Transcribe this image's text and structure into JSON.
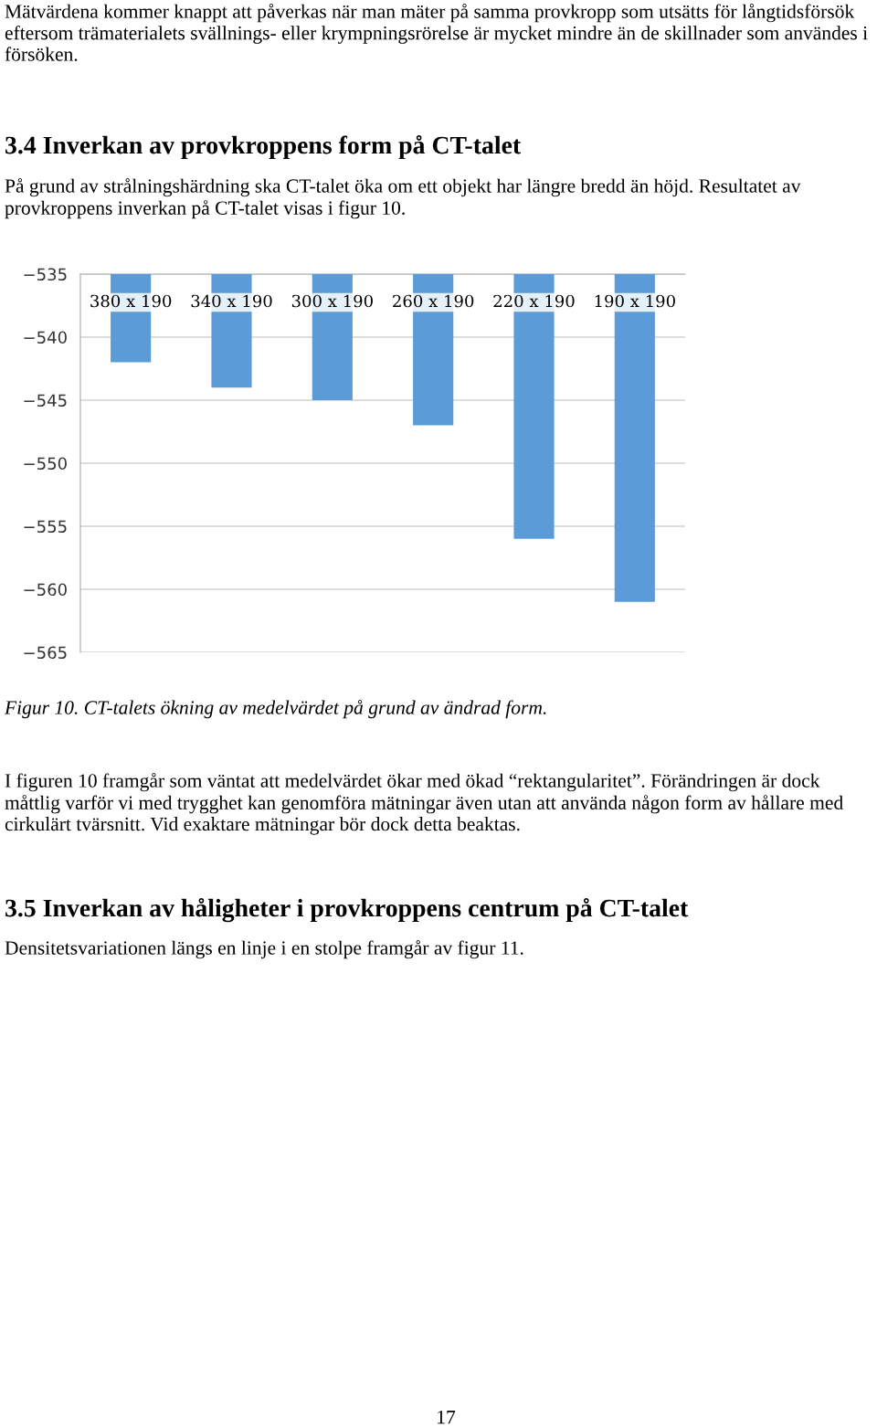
{
  "chart_data": {
    "type": "bar",
    "title": "3.4 Inverkan av provkroppens form på CT-talet",
    "subtitle": "På grund av strålningshärdning ska CT-talet öka om ett objekt har längre bredd än höjd. Resultatet av provkroppens inverkan på CT-talet visas i figur 10.",
    "categories": [
      "380 x 190",
      "340 x 190",
      "300 x 190",
      "260 x 190",
      "220 x 190",
      "190 x 190"
    ],
    "values": [
      -542,
      -544,
      -545,
      -547,
      -556,
      -561
    ],
    "color": "#5b9bd8",
    "ylim": [
      -565,
      -535
    ],
    "yticks": [
      -565,
      -560,
      -555,
      -550,
      -545,
      -540,
      -535
    ],
    "grid": "y",
    "annotations": [
      "Mätvärdena kommer knappt att påverkas när man mäter på samma provkropp som utsätts för långtidsförsök eftersom trämaterialets svällnings- eller krympningsrörelse är mycket mindre än de skillnader som användes i försöken.",
      "Figur 10. CT-talets ökning av medelvärdet på grund av ändrad form.",
      "I figuren 10 framgår som väntat att medelvärdet ökar med ökad “rektangularitet”. Förändringen är dock måttlig varför vi med trygghet kan genomföra mätningar även utan att använda någon form av hållare med cirkulärt tvärsnitt. Vid exaktare mätningar bör dock detta beaktas.",
      "3.5 Inverkan av håligheter i provkroppens centrum på CT-talet",
      "Densitetsvariationen längs en linje i en stolpe framgår av figur 11.",
      "17"
    ]
  }
}
